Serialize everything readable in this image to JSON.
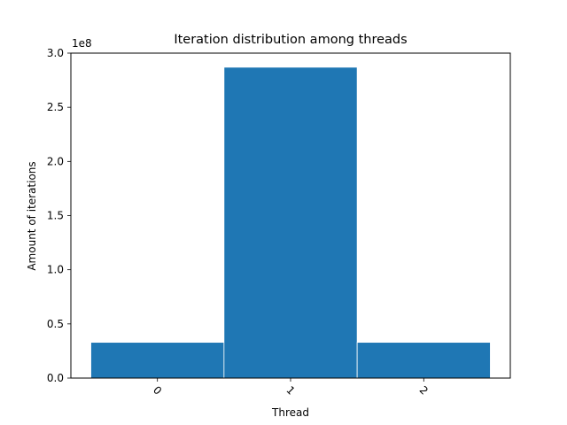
{
  "chart_data": {
    "type": "bar",
    "title": "Iteration distribution among threads",
    "xlabel": "Thread",
    "ylabel": "Amount of iterations",
    "y_offset_label": "1e8",
    "y_scale": 100000000,
    "categories": [
      "0",
      "1",
      "2"
    ],
    "values": [
      33000000,
      287000000,
      33000000
    ],
    "ylim": [
      0,
      300000000
    ],
    "yticks": [
      0,
      50000000,
      100000000,
      150000000,
      200000000,
      250000000,
      300000000
    ],
    "ytick_labels": [
      "0.0",
      "0.5",
      "1.0",
      "1.5",
      "2.0",
      "2.5",
      "3.0"
    ],
    "xtick_rotation_deg": 45,
    "bar_color": "#1f77b4",
    "grid": false,
    "legend": null
  }
}
